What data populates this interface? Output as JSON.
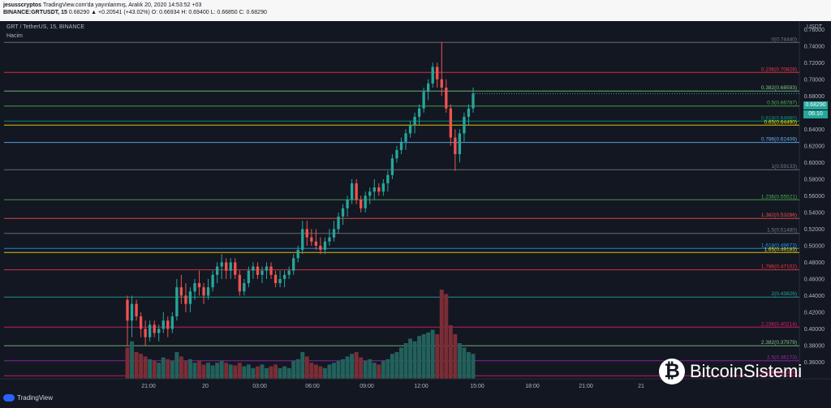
{
  "header": {
    "user": "jesusscryptos",
    "published": "TradingView.com'da yayınlanmış, Aralık 20, 2020 14:53:52 +03",
    "symbol": "BINANCE:GRTUSDT, 15",
    "ohlc": "0.68290 ▲ +0.20541 (+43.02%) O: 0.66934 H: 0.69400 L: 0.66850 C: 0.68290"
  },
  "chart_title": "GRT / TetherUS, 15, BINANCE",
  "volume_label": "Hacim",
  "currency": "USDT",
  "price_badge": "0.68290",
  "countdown": "06:10",
  "brand": {
    "tv": "TradingView",
    "bs": "BitcoinSistemi",
    "bs_mark": "₿"
  },
  "colors": {
    "bg": "#131722",
    "up": "#26a69a",
    "down": "#ef5350",
    "vol_up": "#22615c",
    "vol_down": "#7b2d36"
  },
  "chart_data": {
    "type": "candlestick",
    "title": "GRT / TetherUS, 15, BINANCE",
    "ylim": [
      0.34,
      0.77
    ],
    "y_ticks": [
      0.36,
      0.38,
      0.4,
      0.42,
      0.44,
      0.46,
      0.48,
      0.5,
      0.52,
      0.54,
      0.56,
      0.58,
      0.6,
      0.62,
      0.64,
      0.66,
      0.68,
      0.7,
      0.72,
      0.74,
      0.76
    ],
    "x_ticks": [
      "21:00",
      "20",
      "03:00",
      "06:00",
      "09:00",
      "12:00",
      "15:00",
      "18:00",
      "21:00",
      "21"
    ],
    "fib_levels": [
      {
        "label": "0(0.74440)",
        "value": 0.7444,
        "color": "#787b86"
      },
      {
        "label": "0.236(0.70828)",
        "value": 0.70828,
        "color": "#f23645"
      },
      {
        "label": "0.382(0.68593)",
        "value": 0.68593,
        "color": "#81c784"
      },
      {
        "label": "0.5(0.66787)",
        "value": 0.66787,
        "color": "#4caf50"
      },
      {
        "label": "0.618(0.64980)",
        "value": 0.6498,
        "color": "#089981"
      },
      {
        "label": "0.65(0.64490)",
        "value": 0.6449,
        "color": "#f7e000"
      },
      {
        "label": "0.786(0.62409)",
        "value": 0.62409,
        "color": "#64b5f6"
      },
      {
        "label": "1(0.59133)",
        "value": 0.59133,
        "color": "#787b86"
      },
      {
        "label": "1.236(0.55521)",
        "value": 0.55521,
        "color": "#4caf50"
      },
      {
        "label": "1.382(0.53286)",
        "value": 0.53286,
        "color": "#ef5350"
      },
      {
        "label": "1.5(0.51480)",
        "value": 0.5148,
        "color": "#787b86"
      },
      {
        "label": "1.618(0.49673)",
        "value": 0.49673,
        "color": "#2196f3"
      },
      {
        "label": "1.65(0.49183)",
        "value": 0.49183,
        "color": "#f7e000"
      },
      {
        "label": "1.786(0.47102)",
        "value": 0.47102,
        "color": "#f23645"
      },
      {
        "label": "2(0.43826)",
        "value": 0.43826,
        "color": "#26a69a"
      },
      {
        "label": "2.236(0.40214)",
        "value": 0.40214,
        "color": "#e91e63"
      },
      {
        "label": "2.382(0.37979)",
        "value": 0.37979,
        "color": "#81c784"
      },
      {
        "label": "2.5(0.36173)",
        "value": 0.36173,
        "color": "#9c27b0"
      },
      {
        "label": "2.618(0.34366)",
        "value": 0.34366,
        "color": "#e91e63"
      }
    ],
    "candles": [
      [
        0.435,
        0.44,
        0.38,
        0.41
      ],
      [
        0.41,
        0.44,
        0.39,
        0.43
      ],
      [
        0.43,
        0.435,
        0.41,
        0.415
      ],
      [
        0.415,
        0.42,
        0.39,
        0.4
      ],
      [
        0.4,
        0.41,
        0.38,
        0.39
      ],
      [
        0.39,
        0.41,
        0.385,
        0.405
      ],
      [
        0.405,
        0.41,
        0.39,
        0.395
      ],
      [
        0.395,
        0.405,
        0.385,
        0.4
      ],
      [
        0.4,
        0.42,
        0.395,
        0.41
      ],
      [
        0.41,
        0.415,
        0.39,
        0.4
      ],
      [
        0.4,
        0.42,
        0.395,
        0.415
      ],
      [
        0.415,
        0.46,
        0.41,
        0.45
      ],
      [
        0.45,
        0.465,
        0.43,
        0.44
      ],
      [
        0.44,
        0.455,
        0.42,
        0.43
      ],
      [
        0.43,
        0.45,
        0.42,
        0.445
      ],
      [
        0.445,
        0.46,
        0.435,
        0.455
      ],
      [
        0.455,
        0.47,
        0.44,
        0.45
      ],
      [
        0.45,
        0.455,
        0.43,
        0.44
      ],
      [
        0.44,
        0.46,
        0.435,
        0.45
      ],
      [
        0.45,
        0.47,
        0.445,
        0.465
      ],
      [
        0.465,
        0.48,
        0.455,
        0.475
      ],
      [
        0.475,
        0.49,
        0.46,
        0.48
      ],
      [
        0.48,
        0.485,
        0.46,
        0.47
      ],
      [
        0.47,
        0.485,
        0.46,
        0.48
      ],
      [
        0.48,
        0.485,
        0.46,
        0.465
      ],
      [
        0.465,
        0.47,
        0.44,
        0.445
      ],
      [
        0.445,
        0.46,
        0.44,
        0.455
      ],
      [
        0.455,
        0.475,
        0.45,
        0.47
      ],
      [
        0.47,
        0.48,
        0.46,
        0.475
      ],
      [
        0.475,
        0.48,
        0.46,
        0.465
      ],
      [
        0.465,
        0.475,
        0.455,
        0.47
      ],
      [
        0.47,
        0.48,
        0.46,
        0.475
      ],
      [
        0.475,
        0.48,
        0.46,
        0.465
      ],
      [
        0.465,
        0.47,
        0.45,
        0.455
      ],
      [
        0.455,
        0.47,
        0.45,
        0.46
      ],
      [
        0.46,
        0.47,
        0.45,
        0.465
      ],
      [
        0.465,
        0.475,
        0.46,
        0.47
      ],
      [
        0.47,
        0.49,
        0.465,
        0.485
      ],
      [
        0.485,
        0.5,
        0.48,
        0.495
      ],
      [
        0.495,
        0.53,
        0.49,
        0.52
      ],
      [
        0.52,
        0.53,
        0.5,
        0.51
      ],
      [
        0.51,
        0.52,
        0.5,
        0.505
      ],
      [
        0.505,
        0.52,
        0.495,
        0.5
      ],
      [
        0.5,
        0.51,
        0.49,
        0.495
      ],
      [
        0.495,
        0.51,
        0.49,
        0.505
      ],
      [
        0.505,
        0.52,
        0.5,
        0.51
      ],
      [
        0.51,
        0.53,
        0.505,
        0.52
      ],
      [
        0.52,
        0.54,
        0.515,
        0.535
      ],
      [
        0.535,
        0.55,
        0.525,
        0.545
      ],
      [
        0.545,
        0.56,
        0.535,
        0.555
      ],
      [
        0.555,
        0.58,
        0.55,
        0.575
      ],
      [
        0.575,
        0.58,
        0.55,
        0.555
      ],
      [
        0.555,
        0.56,
        0.54,
        0.545
      ],
      [
        0.545,
        0.565,
        0.54,
        0.56
      ],
      [
        0.56,
        0.57,
        0.55,
        0.565
      ],
      [
        0.565,
        0.58,
        0.555,
        0.57
      ],
      [
        0.57,
        0.575,
        0.56,
        0.565
      ],
      [
        0.565,
        0.58,
        0.56,
        0.575
      ],
      [
        0.575,
        0.59,
        0.565,
        0.585
      ],
      [
        0.585,
        0.61,
        0.58,
        0.605
      ],
      [
        0.605,
        0.62,
        0.6,
        0.615
      ],
      [
        0.615,
        0.63,
        0.61,
        0.625
      ],
      [
        0.625,
        0.64,
        0.615,
        0.635
      ],
      [
        0.635,
        0.65,
        0.63,
        0.645
      ],
      [
        0.645,
        0.66,
        0.635,
        0.655
      ],
      [
        0.655,
        0.67,
        0.645,
        0.665
      ],
      [
        0.665,
        0.69,
        0.66,
        0.685
      ],
      [
        0.685,
        0.7,
        0.675,
        0.695
      ],
      [
        0.695,
        0.72,
        0.69,
        0.715
      ],
      [
        0.715,
        0.72,
        0.69,
        0.7
      ],
      [
        0.7,
        0.745,
        0.68,
        0.69
      ],
      [
        0.69,
        0.7,
        0.66,
        0.665
      ],
      [
        0.665,
        0.67,
        0.62,
        0.63
      ],
      [
        0.63,
        0.64,
        0.59,
        0.61
      ],
      [
        0.61,
        0.64,
        0.6,
        0.635
      ],
      [
        0.635,
        0.66,
        0.625,
        0.655
      ],
      [
        0.655,
        0.67,
        0.645,
        0.665
      ],
      [
        0.665,
        0.69,
        0.66,
        0.6829
      ]
    ],
    "volumes": [
      0.35,
      0.42,
      0.3,
      0.28,
      0.25,
      0.22,
      0.2,
      0.18,
      0.24,
      0.22,
      0.2,
      0.3,
      0.25,
      0.2,
      0.22,
      0.18,
      0.2,
      0.16,
      0.18,
      0.15,
      0.18,
      0.2,
      0.18,
      0.16,
      0.15,
      0.18,
      0.14,
      0.16,
      0.12,
      0.14,
      0.16,
      0.12,
      0.14,
      0.16,
      0.12,
      0.14,
      0.12,
      0.2,
      0.22,
      0.3,
      0.25,
      0.18,
      0.16,
      0.14,
      0.12,
      0.16,
      0.18,
      0.2,
      0.22,
      0.25,
      0.28,
      0.3,
      0.24,
      0.2,
      0.22,
      0.18,
      0.16,
      0.2,
      0.22,
      0.28,
      0.3,
      0.35,
      0.4,
      0.45,
      0.42,
      0.48,
      0.5,
      0.52,
      0.55,
      0.5,
      1.0,
      0.95,
      0.6,
      0.5,
      0.4,
      0.35,
      0.3,
      0.28
    ]
  }
}
